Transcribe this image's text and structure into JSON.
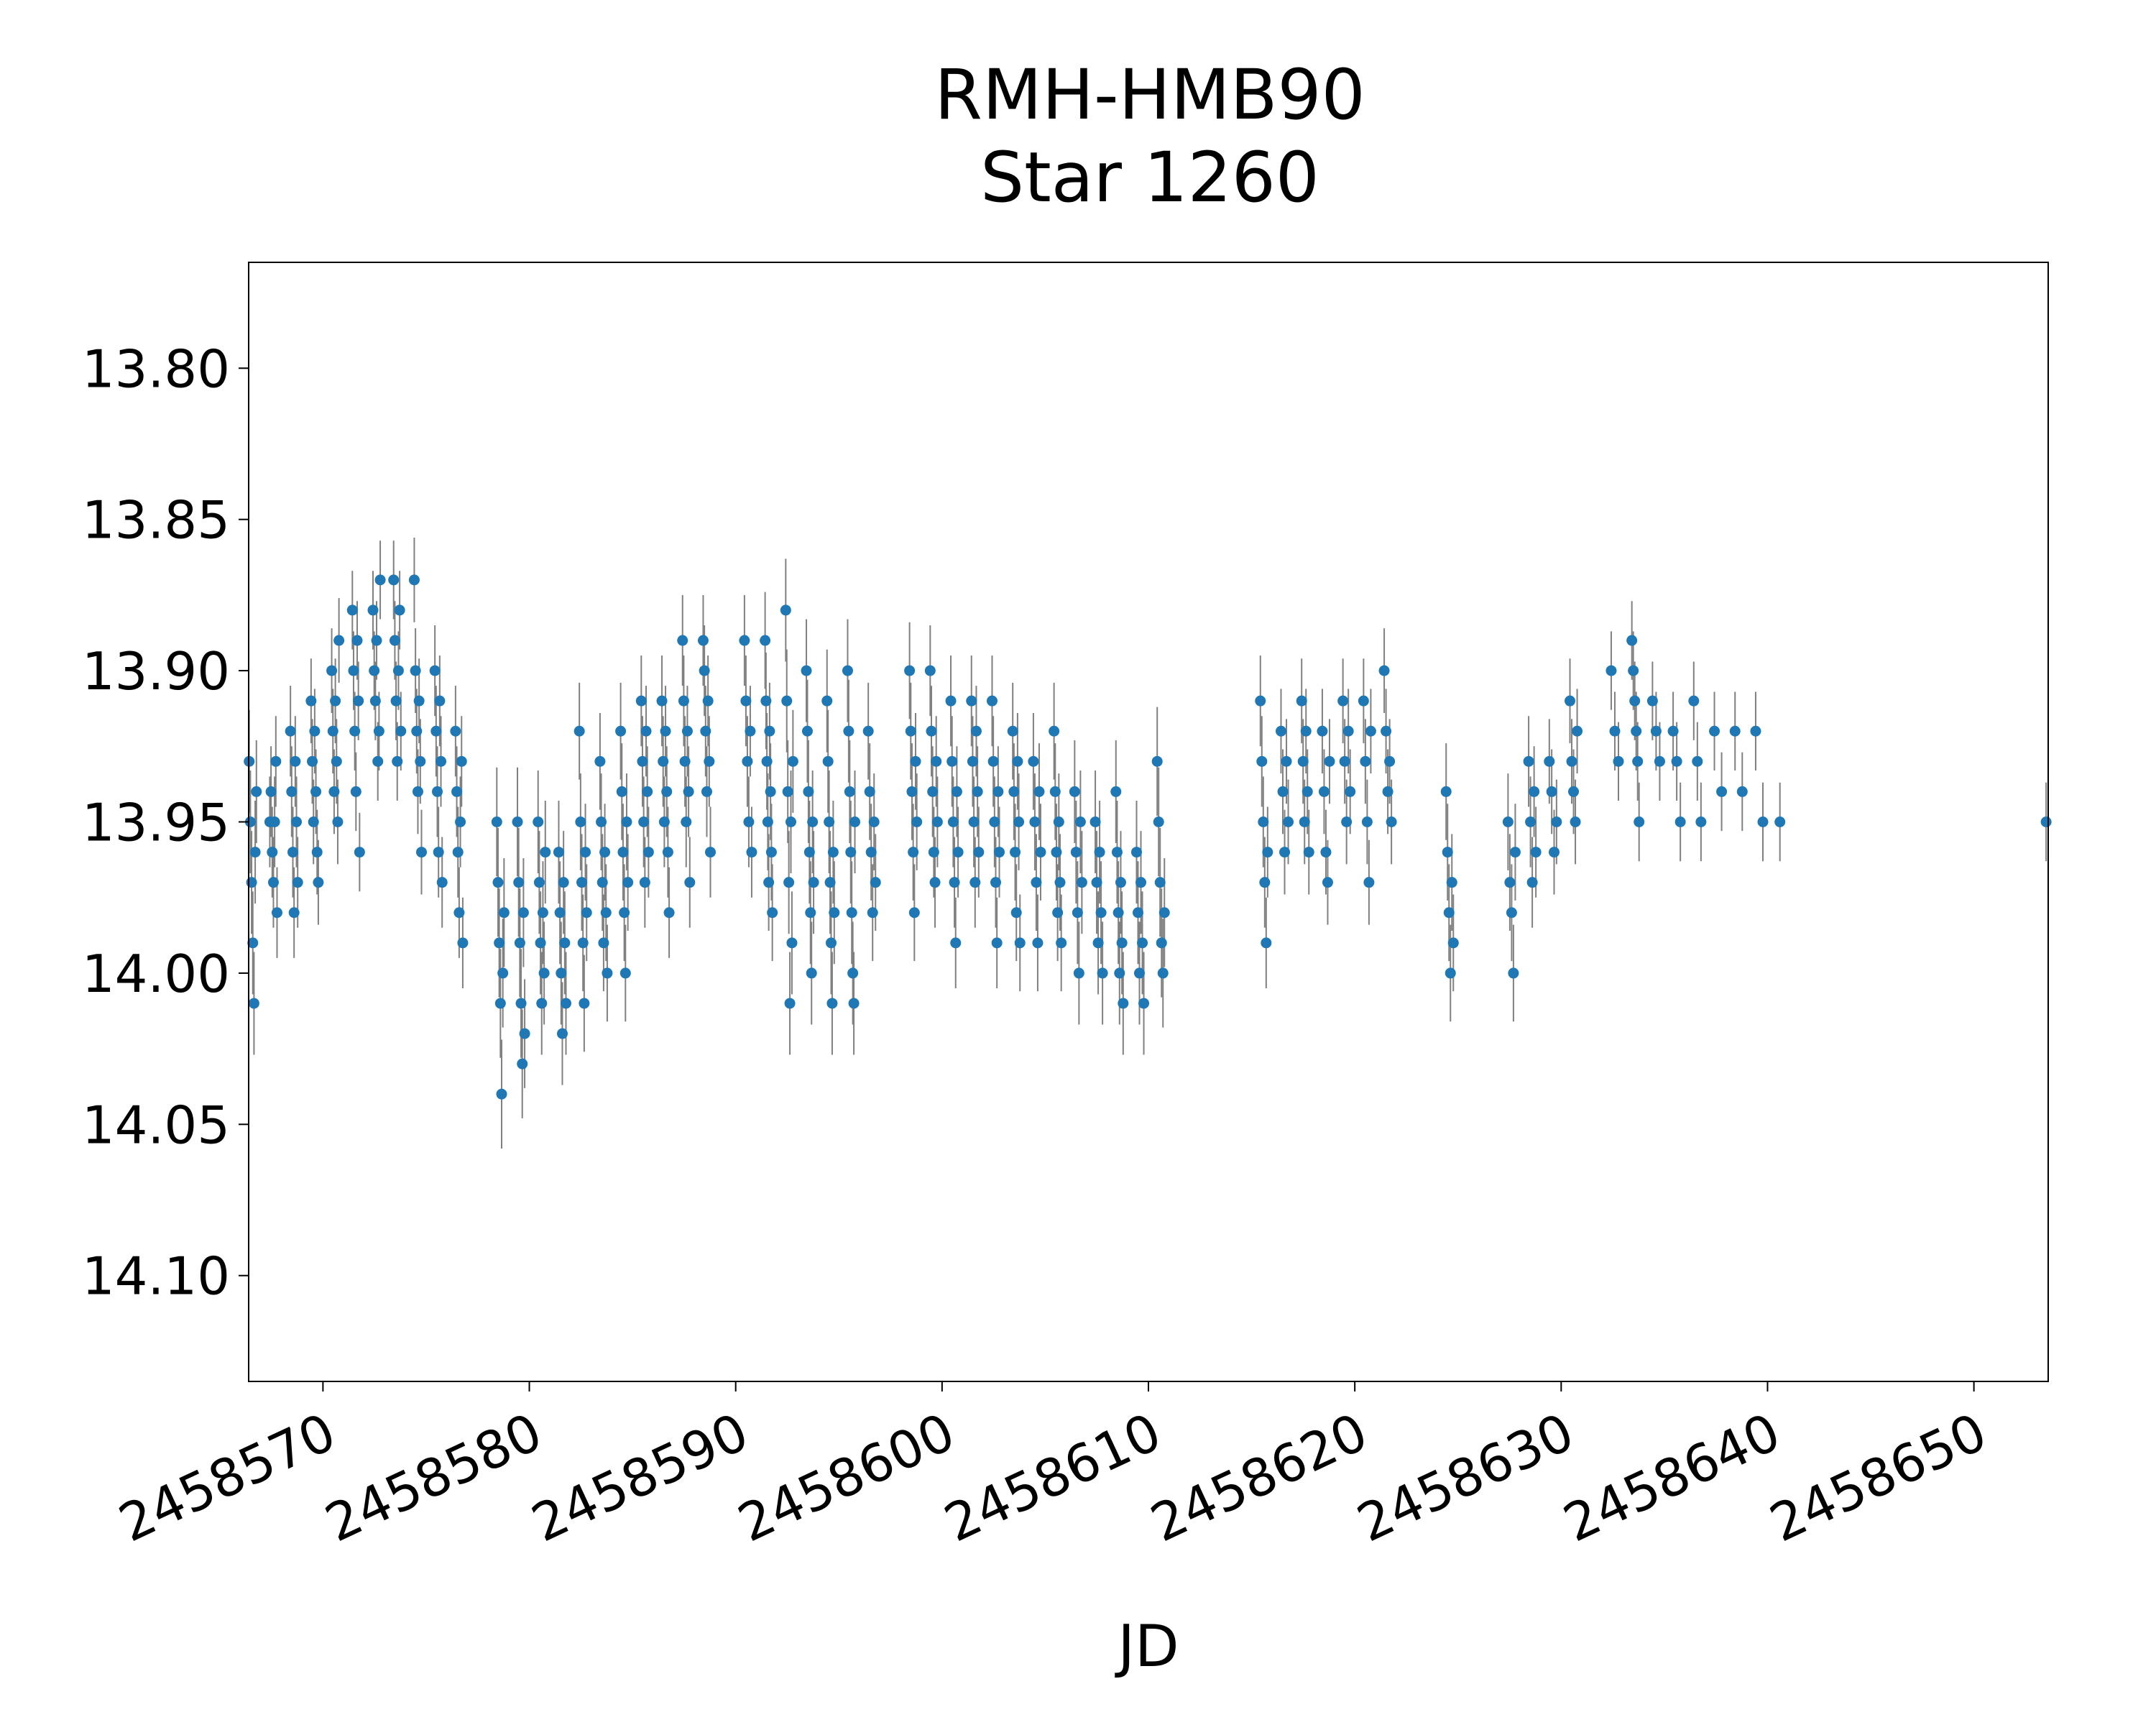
{
  "chart_data": {
    "type": "scatter",
    "title": "RMH-HMB90",
    "subtitle": "Star 1260",
    "xlabel": "JD",
    "ylabel": "",
    "xlim": [
      2458566.4,
      2458653.6
    ],
    "ylim": [
      14.135,
      13.765
    ],
    "y_inverted": true,
    "x_ticks": [
      2458570,
      2458580,
      2458590,
      2458600,
      2458610,
      2458620,
      2458630,
      2458640,
      2458650
    ],
    "x_tick_labels": [
      "2458570",
      "2458580",
      "2458590",
      "2458600",
      "2458610",
      "2458620",
      "2458630",
      "2458640",
      "2458650"
    ],
    "y_ticks": [
      13.8,
      13.85,
      13.9,
      13.95,
      14.0,
      14.05,
      14.1
    ],
    "y_tick_labels": [
      "13.80",
      "13.85",
      "13.90",
      "13.95",
      "14.00",
      "14.05",
      "14.10"
    ],
    "grid": false,
    "colors": {
      "points": "#1f77b4",
      "errorbars": "#808080"
    },
    "nights": [
      {
        "jd": 2458566.6,
        "mags": [
          13.93,
          13.95,
          13.97,
          13.99,
          14.01,
          13.96,
          13.94
        ],
        "err": 0.017
      },
      {
        "jd": 2458567.6,
        "mags": [
          13.95,
          13.94,
          13.96,
          13.97,
          13.95,
          13.93,
          13.98
        ],
        "err": 0.015
      },
      {
        "jd": 2458568.6,
        "mags": [
          13.92,
          13.94,
          13.96,
          13.98,
          13.93,
          13.95,
          13.97
        ],
        "err": 0.015
      },
      {
        "jd": 2458569.6,
        "mags": [
          13.91,
          13.93,
          13.95,
          13.92,
          13.94,
          13.96,
          13.97
        ],
        "err": 0.014
      },
      {
        "jd": 2458570.6,
        "mags": [
          13.9,
          13.92,
          13.94,
          13.91,
          13.93,
          13.95,
          13.89
        ],
        "err": 0.014
      },
      {
        "jd": 2458571.6,
        "mags": [
          13.88,
          13.9,
          13.92,
          13.94,
          13.89,
          13.91,
          13.96
        ],
        "err": 0.013
      },
      {
        "jd": 2458572.6,
        "mags": [
          13.88,
          13.9,
          13.91,
          13.89,
          13.93,
          13.92,
          13.87
        ],
        "err": 0.013
      },
      {
        "jd": 2458573.6,
        "mags": [
          13.87,
          13.89,
          13.91,
          13.93,
          13.9,
          13.88,
          13.92
        ],
        "err": 0.013
      },
      {
        "jd": 2458574.6,
        "mags": [
          13.87,
          13.9,
          13.92,
          13.94,
          13.91,
          13.93,
          13.96
        ],
        "err": 0.014
      },
      {
        "jd": 2458575.6,
        "mags": [
          13.9,
          13.92,
          13.94,
          13.96,
          13.91,
          13.93,
          13.97
        ],
        "err": 0.015
      },
      {
        "jd": 2458576.6,
        "mags": [
          13.92,
          13.94,
          13.96,
          13.98,
          13.95,
          13.93,
          13.99
        ],
        "err": 0.015
      },
      {
        "jd": 2458578.6,
        "mags": [
          13.95,
          13.97,
          13.99,
          14.01,
          14.04,
          14.0,
          13.98
        ],
        "err": 0.018
      },
      {
        "jd": 2458579.6,
        "mags": [
          13.95,
          13.97,
          13.99,
          14.01,
          14.03,
          13.98,
          14.02
        ],
        "err": 0.018
      },
      {
        "jd": 2458580.6,
        "mags": [
          13.95,
          13.97,
          13.99,
          14.01,
          13.98,
          14.0,
          13.96
        ],
        "err": 0.017
      },
      {
        "jd": 2458581.6,
        "mags": [
          13.96,
          13.98,
          14.0,
          14.02,
          13.97,
          13.99,
          14.01
        ],
        "err": 0.017
      },
      {
        "jd": 2458582.6,
        "mags": [
          13.92,
          13.95,
          13.97,
          13.99,
          14.01,
          13.96,
          13.98
        ],
        "err": 0.016
      },
      {
        "jd": 2458583.6,
        "mags": [
          13.93,
          13.95,
          13.97,
          13.99,
          13.96,
          13.98,
          14.0
        ],
        "err": 0.016
      },
      {
        "jd": 2458584.6,
        "mags": [
          13.92,
          13.94,
          13.96,
          13.98,
          14.0,
          13.95,
          13.97
        ],
        "err": 0.016
      },
      {
        "jd": 2458585.6,
        "mags": [
          13.91,
          13.93,
          13.95,
          13.97,
          13.92,
          13.94,
          13.96
        ],
        "err": 0.015
      },
      {
        "jd": 2458586.6,
        "mags": [
          13.91,
          13.93,
          13.95,
          13.92,
          13.94,
          13.96,
          13.98
        ],
        "err": 0.015
      },
      {
        "jd": 2458587.6,
        "mags": [
          13.89,
          13.91,
          13.93,
          13.95,
          13.92,
          13.94,
          13.97
        ],
        "err": 0.015
      },
      {
        "jd": 2458588.6,
        "mags": [
          13.89,
          13.9,
          13.92,
          13.94,
          13.91,
          13.93,
          13.96
        ],
        "err": 0.015
      },
      {
        "jd": 2458590.6,
        "mags": [
          13.89,
          13.91,
          13.93,
          13.95,
          13.92,
          13.96
        ],
        "err": 0.015
      },
      {
        "jd": 2458591.6,
        "mags": [
          13.89,
          13.91,
          13.93,
          13.95,
          13.97,
          13.92,
          13.94,
          13.96,
          13.98
        ],
        "err": 0.016
      },
      {
        "jd": 2458592.6,
        "mags": [
          13.88,
          13.91,
          13.94,
          13.97,
          14.01,
          13.95,
          13.99,
          13.93
        ],
        "err": 0.017
      },
      {
        "jd": 2458593.6,
        "mags": [
          13.9,
          13.92,
          13.94,
          13.96,
          13.98,
          14.0,
          13.95,
          13.97
        ],
        "err": 0.017
      },
      {
        "jd": 2458594.6,
        "mags": [
          13.91,
          13.93,
          13.95,
          13.97,
          13.99,
          14.01,
          13.96,
          13.98
        ],
        "err": 0.017
      },
      {
        "jd": 2458595.6,
        "mags": [
          13.9,
          13.92,
          13.94,
          13.96,
          13.98,
          14.0,
          14.01,
          13.95
        ],
        "err": 0.017
      },
      {
        "jd": 2458596.6,
        "mags": [
          13.92,
          13.94,
          13.96,
          13.98,
          13.95,
          13.97
        ],
        "err": 0.016
      },
      {
        "jd": 2458598.6,
        "mags": [
          13.9,
          13.92,
          13.94,
          13.96,
          13.98,
          13.93,
          13.95
        ],
        "err": 0.016
      },
      {
        "jd": 2458599.6,
        "mags": [
          13.9,
          13.92,
          13.94,
          13.96,
          13.97,
          13.93,
          13.95
        ],
        "err": 0.015
      },
      {
        "jd": 2458600.6,
        "mags": [
          13.91,
          13.93,
          13.95,
          13.97,
          13.99,
          13.94,
          13.96
        ],
        "err": 0.015
      },
      {
        "jd": 2458601.6,
        "mags": [
          13.91,
          13.93,
          13.95,
          13.97,
          13.92,
          13.94,
          13.96
        ],
        "err": 0.015
      },
      {
        "jd": 2458602.6,
        "mags": [
          13.91,
          13.93,
          13.95,
          13.97,
          13.99,
          13.94,
          13.96
        ],
        "err": 0.015
      },
      {
        "jd": 2458603.6,
        "mags": [
          13.92,
          13.94,
          13.96,
          13.98,
          13.93,
          13.95,
          13.99
        ],
        "err": 0.016
      },
      {
        "jd": 2458604.6,
        "mags": [
          13.93,
          13.95,
          13.97,
          13.99,
          13.94,
          13.96
        ],
        "err": 0.016
      },
      {
        "jd": 2458605.6,
        "mags": [
          13.92,
          13.94,
          13.96,
          13.98,
          13.95,
          13.97,
          13.99
        ],
        "err": 0.016
      },
      {
        "jd": 2458606.6,
        "mags": [
          13.94,
          13.96,
          13.98,
          14.0,
          13.95,
          13.97
        ],
        "err": 0.017
      },
      {
        "jd": 2458607.6,
        "mags": [
          13.95,
          13.97,
          13.99,
          13.96,
          13.98,
          14.0
        ],
        "err": 0.017
      },
      {
        "jd": 2458608.6,
        "mags": [
          13.94,
          13.96,
          13.98,
          14.0,
          13.97,
          13.99,
          14.01
        ],
        "err": 0.017
      },
      {
        "jd": 2458609.6,
        "mags": [
          13.96,
          13.98,
          14.0,
          13.97,
          13.99,
          14.01
        ],
        "err": 0.017
      },
      {
        "jd": 2458610.6,
        "mags": [
          13.93,
          13.95,
          13.97,
          13.99,
          14.0,
          13.98
        ],
        "err": 0.018
      },
      {
        "jd": 2458615.6,
        "mags": [
          13.91,
          13.93,
          13.95,
          13.97,
          13.99,
          13.96
        ],
        "err": 0.015
      },
      {
        "jd": 2458616.6,
        "mags": [
          13.92,
          13.94,
          13.96,
          13.93,
          13.95
        ],
        "err": 0.014
      },
      {
        "jd": 2458617.6,
        "mags": [
          13.91,
          13.93,
          13.95,
          13.92,
          13.94,
          13.96
        ],
        "err": 0.014
      },
      {
        "jd": 2458618.6,
        "mags": [
          13.92,
          13.94,
          13.96,
          13.97,
          13.93
        ],
        "err": 0.014
      },
      {
        "jd": 2458619.6,
        "mags": [
          13.91,
          13.93,
          13.95,
          13.92,
          13.94
        ],
        "err": 0.014
      },
      {
        "jd": 2458620.6,
        "mags": [
          13.91,
          13.93,
          13.95,
          13.97,
          13.92
        ],
        "err": 0.014
      },
      {
        "jd": 2458621.6,
        "mags": [
          13.9,
          13.92,
          13.94,
          13.93,
          13.95
        ],
        "err": 0.014
      },
      {
        "jd": 2458624.6,
        "mags": [
          13.94,
          13.96,
          13.98,
          14.0,
          13.97,
          13.99
        ],
        "err": 0.016
      },
      {
        "jd": 2458627.6,
        "mags": [
          13.95,
          13.97,
          13.98,
          14.0,
          13.96
        ],
        "err": 0.016
      },
      {
        "jd": 2458628.6,
        "mags": [
          13.93,
          13.95,
          13.97,
          13.94,
          13.96
        ],
        "err": 0.015
      },
      {
        "jd": 2458629.6,
        "mags": [
          13.93,
          13.94,
          13.96,
          13.95
        ],
        "err": 0.014
      },
      {
        "jd": 2458630.6,
        "mags": [
          13.91,
          13.93,
          13.94,
          13.95,
          13.92
        ],
        "err": 0.014
      },
      {
        "jd": 2458632.6,
        "mags": [
          13.9,
          13.92,
          13.93
        ],
        "err": 0.013
      },
      {
        "jd": 2458633.6,
        "mags": [
          13.89,
          13.9,
          13.91,
          13.92,
          13.93,
          13.95
        ],
        "err": 0.013
      },
      {
        "jd": 2458634.6,
        "mags": [
          13.91,
          13.92,
          13.93
        ],
        "err": 0.013
      },
      {
        "jd": 2458635.6,
        "mags": [
          13.92,
          13.93,
          13.95
        ],
        "err": 0.013
      },
      {
        "jd": 2458636.6,
        "mags": [
          13.91,
          13.93,
          13.95
        ],
        "err": 0.013
      },
      {
        "jd": 2458637.6,
        "mags": [
          13.92,
          13.94
        ],
        "err": 0.013
      },
      {
        "jd": 2458638.6,
        "mags": [
          13.92,
          13.94
        ],
        "err": 0.013
      },
      {
        "jd": 2458639.6,
        "mags": [
          13.92,
          13.95
        ],
        "err": 0.013
      },
      {
        "jd": 2458640.6,
        "mags": [
          13.95
        ],
        "err": 0.013
      },
      {
        "jd": 2458653.5,
        "mags": [
          13.95
        ],
        "err": 0.013
      }
    ]
  }
}
